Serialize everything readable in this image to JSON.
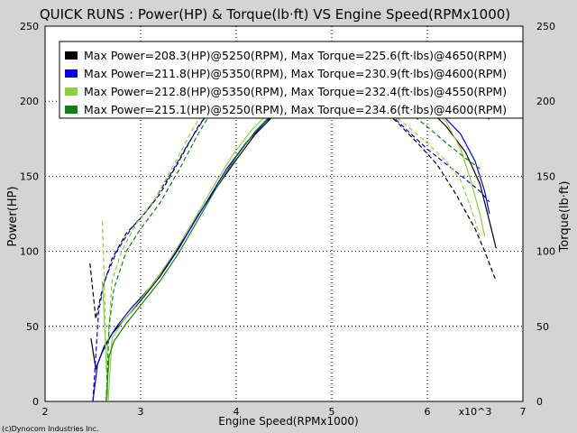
{
  "chart_data": {
    "type": "line",
    "title": "QUICK RUNS : Power(HP) & Torque(lb·ft) VS Engine Speed(RPMx1000)",
    "xlabel": "Engine Speed(RPMx1000)",
    "ylabel": "Power(HP)",
    "y2label": "Torque(lb·ft)",
    "x_multiplier": "x10^3",
    "credit": "(c)Dynocom Industries Inc.",
    "xlim": [
      2,
      7
    ],
    "ylim": [
      0,
      250
    ],
    "y2lim": [
      0,
      250
    ],
    "x_ticks": [
      "2",
      "3",
      "4",
      "5",
      "6",
      "7"
    ],
    "y_ticks": [
      "0",
      "50",
      "100",
      "150",
      "200",
      "250"
    ],
    "y2_ticks": [
      "0",
      "50",
      "100",
      "150",
      "200",
      "250"
    ],
    "grid": true,
    "legend_position": "top",
    "series": [
      {
        "name": "Max Power=208.3(HP)@5250(RPM), Max Torque=225.6(ft·lbs)@4650(RPM)",
        "color": "#000000",
        "power": [
          [
            2.48,
            42
          ],
          [
            2.53,
            22
          ],
          [
            2.6,
            33
          ],
          [
            2.7,
            45
          ],
          [
            2.85,
            56
          ],
          [
            3.0,
            67
          ],
          [
            3.2,
            83
          ],
          [
            3.4,
            102
          ],
          [
            3.6,
            124
          ],
          [
            3.8,
            143
          ],
          [
            4.0,
            161
          ],
          [
            4.2,
            178
          ],
          [
            4.4,
            191
          ],
          [
            4.6,
            200
          ],
          [
            4.8,
            205
          ],
          [
            5.0,
            207
          ],
          [
            5.25,
            208
          ],
          [
            5.5,
            207
          ],
          [
            5.8,
            202
          ],
          [
            6.0,
            196
          ],
          [
            6.2,
            183
          ],
          [
            6.4,
            166
          ],
          [
            6.55,
            145
          ],
          [
            6.65,
            120
          ],
          [
            6.72,
            102
          ]
        ],
        "torque": [
          [
            2.47,
            92
          ],
          [
            2.53,
            55
          ],
          [
            2.6,
            75
          ],
          [
            2.7,
            95
          ],
          [
            2.85,
            112
          ],
          [
            3.0,
            122
          ],
          [
            3.2,
            138
          ],
          [
            3.4,
            160
          ],
          [
            3.6,
            183
          ],
          [
            3.8,
            200
          ],
          [
            4.0,
            212
          ],
          [
            4.2,
            219
          ],
          [
            4.4,
            223
          ],
          [
            4.65,
            225
          ],
          [
            4.9,
            221
          ],
          [
            5.1,
            216
          ],
          [
            5.3,
            208
          ],
          [
            5.5,
            197
          ],
          [
            5.7,
            185
          ],
          [
            5.9,
            172
          ],
          [
            6.1,
            158
          ],
          [
            6.3,
            138
          ],
          [
            6.5,
            115
          ],
          [
            6.6,
            100
          ],
          [
            6.72,
            80
          ]
        ]
      },
      {
        "name": "Max Power=211.8(HP)@5350(RPM), Max Torque=230.9(ft·lbs)@4600(RPM)",
        "color": "#0000dd",
        "power": [
          [
            2.5,
            0
          ],
          [
            2.55,
            25
          ],
          [
            2.62,
            37
          ],
          [
            2.75,
            50
          ],
          [
            2.9,
            62
          ],
          [
            3.1,
            76
          ],
          [
            3.3,
            93
          ],
          [
            3.5,
            113
          ],
          [
            3.7,
            134
          ],
          [
            3.9,
            155
          ],
          [
            4.1,
            172
          ],
          [
            4.3,
            186
          ],
          [
            4.5,
            197
          ],
          [
            4.7,
            204
          ],
          [
            4.9,
            209
          ],
          [
            5.1,
            211
          ],
          [
            5.35,
            212
          ],
          [
            5.6,
            210
          ],
          [
            5.8,
            205
          ],
          [
            6.0,
            198
          ],
          [
            6.2,
            188
          ],
          [
            6.35,
            178
          ],
          [
            6.5,
            160
          ],
          [
            6.6,
            140
          ],
          [
            6.65,
            125
          ]
        ],
        "torque": [
          [
            2.5,
            0
          ],
          [
            2.56,
            60
          ],
          [
            2.62,
            80
          ],
          [
            2.75,
            100
          ],
          [
            2.9,
            115
          ],
          [
            3.1,
            130
          ],
          [
            3.3,
            150
          ],
          [
            3.5,
            172
          ],
          [
            3.7,
            192
          ],
          [
            3.9,
            208
          ],
          [
            4.1,
            220
          ],
          [
            4.3,
            227
          ],
          [
            4.6,
            230
          ],
          [
            4.8,
            227
          ],
          [
            5.0,
            221
          ],
          [
            5.2,
            212
          ],
          [
            5.4,
            202
          ],
          [
            5.6,
            192
          ],
          [
            5.8,
            180
          ],
          [
            6.0,
            168
          ],
          [
            6.2,
            158
          ],
          [
            6.4,
            148
          ],
          [
            6.55,
            140
          ],
          [
            6.65,
            133
          ]
        ]
      },
      {
        "name": "Max Power=212.8(HP)@5350(RPM), Max Torque=232.4(ft·lbs)@4550(RPM)",
        "color": "#90d040",
        "power": [
          [
            2.6,
            80
          ],
          [
            2.63,
            40
          ],
          [
            2.66,
            0
          ],
          [
            2.7,
            42
          ],
          [
            2.8,
            52
          ],
          [
            2.95,
            64
          ],
          [
            3.15,
            80
          ],
          [
            3.35,
            99
          ],
          [
            3.55,
            120
          ],
          [
            3.75,
            142
          ],
          [
            3.95,
            163
          ],
          [
            4.15,
            180
          ],
          [
            4.35,
            193
          ],
          [
            4.55,
            203
          ],
          [
            4.75,
            209
          ],
          [
            5.0,
            211
          ],
          [
            5.35,
            213
          ],
          [
            5.6,
            211
          ],
          [
            5.8,
            207
          ],
          [
            6.0,
            199
          ],
          [
            6.2,
            186
          ],
          [
            6.35,
            168
          ],
          [
            6.45,
            148
          ],
          [
            6.55,
            125
          ],
          [
            6.6,
            110
          ]
        ],
        "torque": [
          [
            2.6,
            120
          ],
          [
            2.62,
            80
          ],
          [
            2.64,
            20
          ],
          [
            2.7,
            80
          ],
          [
            2.8,
            100
          ],
          [
            2.95,
            118
          ],
          [
            3.15,
            135
          ],
          [
            3.35,
            158
          ],
          [
            3.55,
            182
          ],
          [
            3.75,
            202
          ],
          [
            3.95,
            216
          ],
          [
            4.15,
            225
          ],
          [
            4.35,
            230
          ],
          [
            4.55,
            232
          ],
          [
            4.8,
            229
          ],
          [
            5.0,
            222
          ],
          [
            5.2,
            213
          ],
          [
            5.4,
            203
          ],
          [
            5.6,
            193
          ],
          [
            5.8,
            183
          ],
          [
            6.0,
            172
          ],
          [
            6.2,
            160
          ],
          [
            6.35,
            147
          ],
          [
            6.45,
            130
          ],
          [
            6.55,
            110
          ]
        ]
      },
      {
        "name": "Max Power=215.1(HP)@5250(RPM), Max Torque=234.6(ft·lbs)@4600(RPM)",
        "color": "#108010",
        "power": [
          [
            2.64,
            0
          ],
          [
            2.67,
            30
          ],
          [
            2.72,
            40
          ],
          [
            2.85,
            52
          ],
          [
            3.0,
            64
          ],
          [
            3.2,
            80
          ],
          [
            3.4,
            99
          ],
          [
            3.6,
            121
          ],
          [
            3.8,
            143
          ],
          [
            4.0,
            163
          ],
          [
            4.2,
            180
          ],
          [
            4.4,
            193
          ],
          [
            4.6,
            203
          ],
          [
            4.8,
            210
          ],
          [
            5.0,
            213
          ],
          [
            5.25,
            215
          ],
          [
            5.5,
            214
          ],
          [
            5.7,
            212
          ],
          [
            5.9,
            210
          ],
          [
            6.1,
            206
          ],
          [
            6.3,
            200
          ],
          [
            6.5,
            193
          ],
          [
            6.65,
            188
          ]
        ],
        "torque": [
          [
            2.64,
            0
          ],
          [
            2.67,
            50
          ],
          [
            2.72,
            75
          ],
          [
            2.85,
            100
          ],
          [
            3.0,
            115
          ],
          [
            3.2,
            132
          ],
          [
            3.4,
            154
          ],
          [
            3.6,
            178
          ],
          [
            3.8,
            199
          ],
          [
            4.0,
            214
          ],
          [
            4.2,
            225
          ],
          [
            4.4,
            231
          ],
          [
            4.6,
            234
          ],
          [
            4.8,
            232
          ],
          [
            5.0,
            227
          ],
          [
            5.2,
            220
          ],
          [
            5.4,
            212
          ],
          [
            5.6,
            203
          ],
          [
            5.8,
            193
          ],
          [
            6.0,
            183
          ],
          [
            6.2,
            172
          ],
          [
            6.4,
            162
          ],
          [
            6.55,
            155
          ]
        ]
      }
    ]
  }
}
